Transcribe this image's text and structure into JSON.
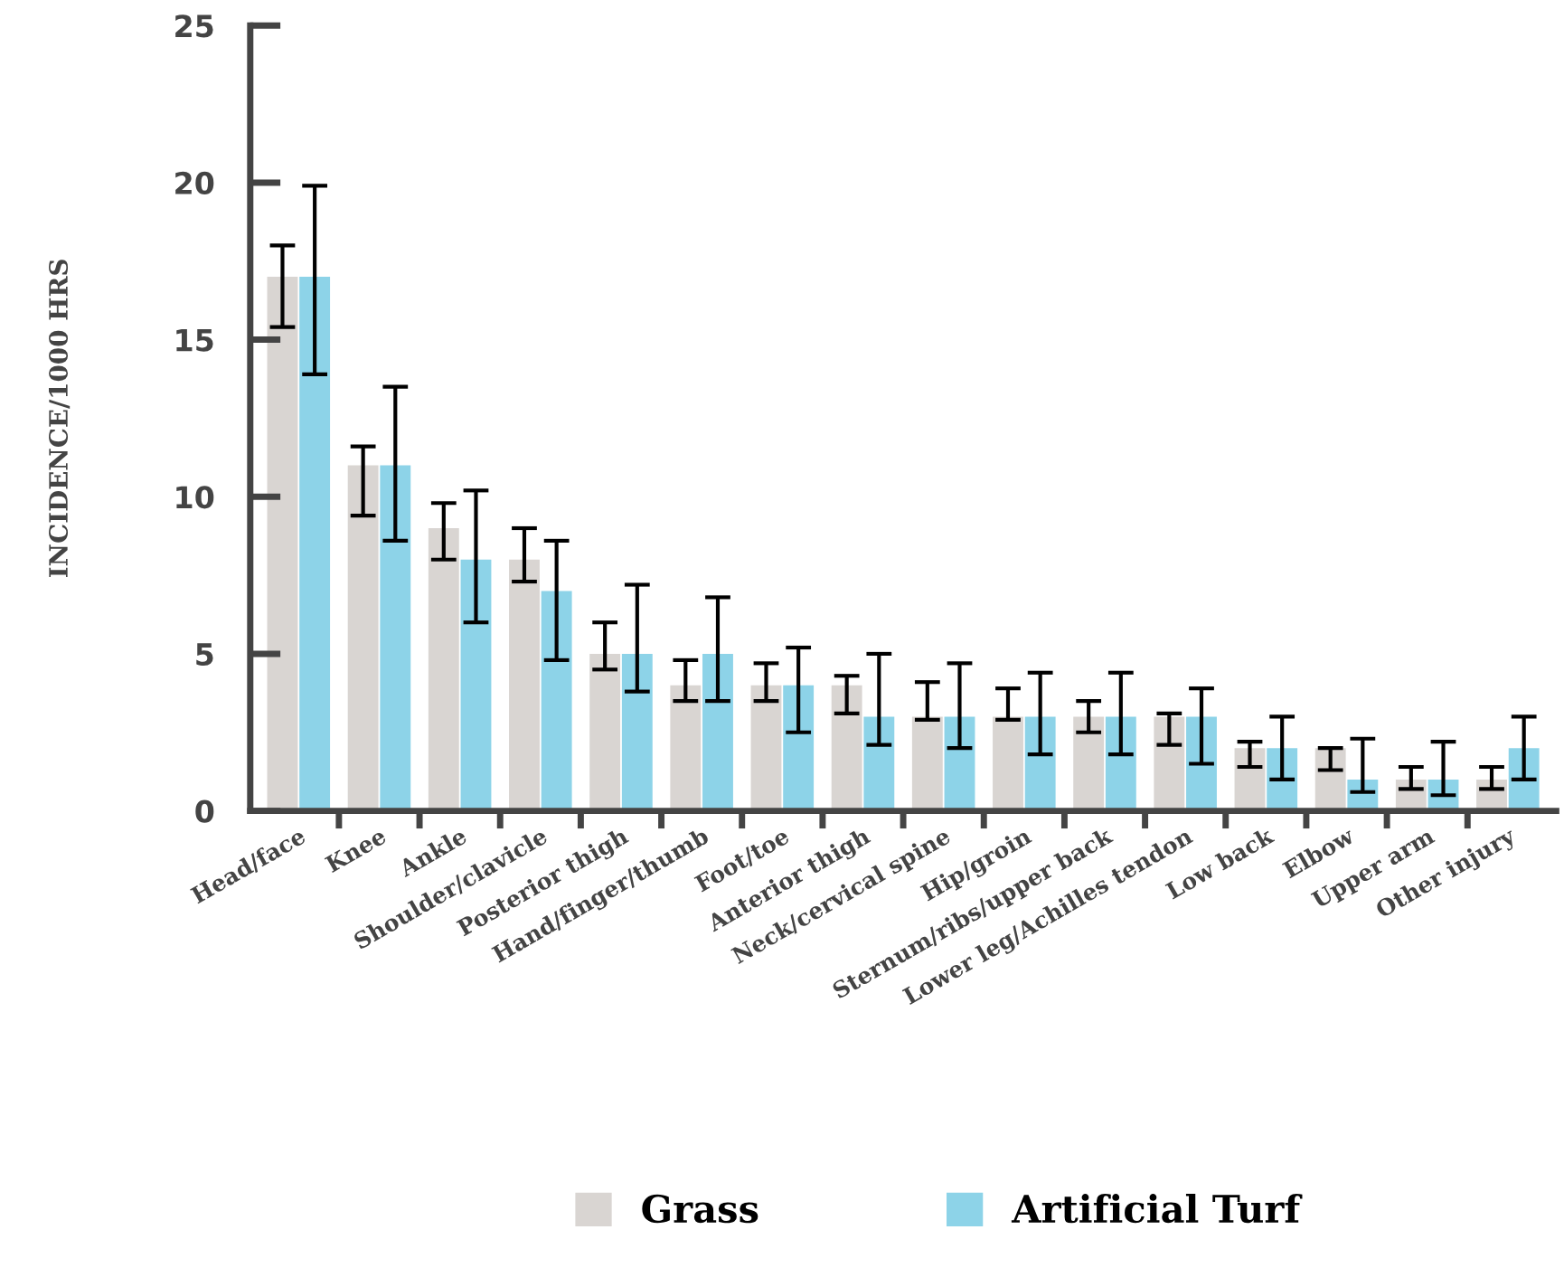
{
  "chart_data": {
    "type": "bar",
    "ylabel": "INCIDENCE/1000 HRS",
    "categories": [
      "Head/face",
      "Knee",
      "Ankle",
      "Shoulder/clavicle",
      "Posterior thigh",
      "Hand/finger/thumb",
      "Foot/toe",
      "Anterior thigh",
      "Neck/cervical spine",
      "Hip/groin",
      "Sternum/ribs/upper back",
      "Lower leg/Achilles tendon",
      "Low back",
      "Elbow",
      "Upper arm",
      "Other injury"
    ],
    "series": [
      {
        "name": "Grass",
        "color": "#d9d5d2",
        "values": [
          17,
          11,
          9,
          8,
          5,
          4,
          4,
          4,
          3,
          3,
          3,
          3,
          2,
          2,
          1,
          1
        ],
        "errors": [
          [
            15.4,
            18
          ],
          [
            9.4,
            11.6
          ],
          [
            8,
            9.8
          ],
          [
            7.3,
            9
          ],
          [
            4.5,
            6
          ],
          [
            3.5,
            4.8
          ],
          [
            3.5,
            4.7
          ],
          [
            3.1,
            4.3
          ],
          [
            2.9,
            4.1
          ],
          [
            2.9,
            3.9
          ],
          [
            2.5,
            3.5
          ],
          [
            2.1,
            3.1
          ],
          [
            1.4,
            2.2
          ],
          [
            1.3,
            2
          ],
          [
            0.7,
            1.4
          ],
          [
            0.7,
            1.4
          ]
        ]
      },
      {
        "name": "Artificial Turf",
        "color": "#8dd3e8",
        "values": [
          17,
          11,
          8,
          7,
          5,
          5,
          4,
          3,
          3,
          3,
          3,
          3,
          2,
          1,
          1,
          2
        ],
        "errors": [
          [
            13.9,
            19.9
          ],
          [
            8.6,
            13.5
          ],
          [
            6,
            10.2
          ],
          [
            4.8,
            8.6
          ],
          [
            3.8,
            7.2
          ],
          [
            3.5,
            6.8
          ],
          [
            2.5,
            5.2
          ],
          [
            2.1,
            5
          ],
          [
            2,
            4.7
          ],
          [
            1.8,
            4.4
          ],
          [
            1.8,
            4.4
          ],
          [
            1.5,
            3.9
          ],
          [
            1,
            3
          ],
          [
            0.6,
            2.3
          ],
          [
            0.5,
            2.2
          ],
          [
            1,
            3
          ]
        ]
      }
    ],
    "ylim": [
      0,
      25
    ],
    "yticks": [
      0,
      5,
      10,
      15,
      20,
      25
    ],
    "grid": false,
    "legend": "bottom"
  }
}
